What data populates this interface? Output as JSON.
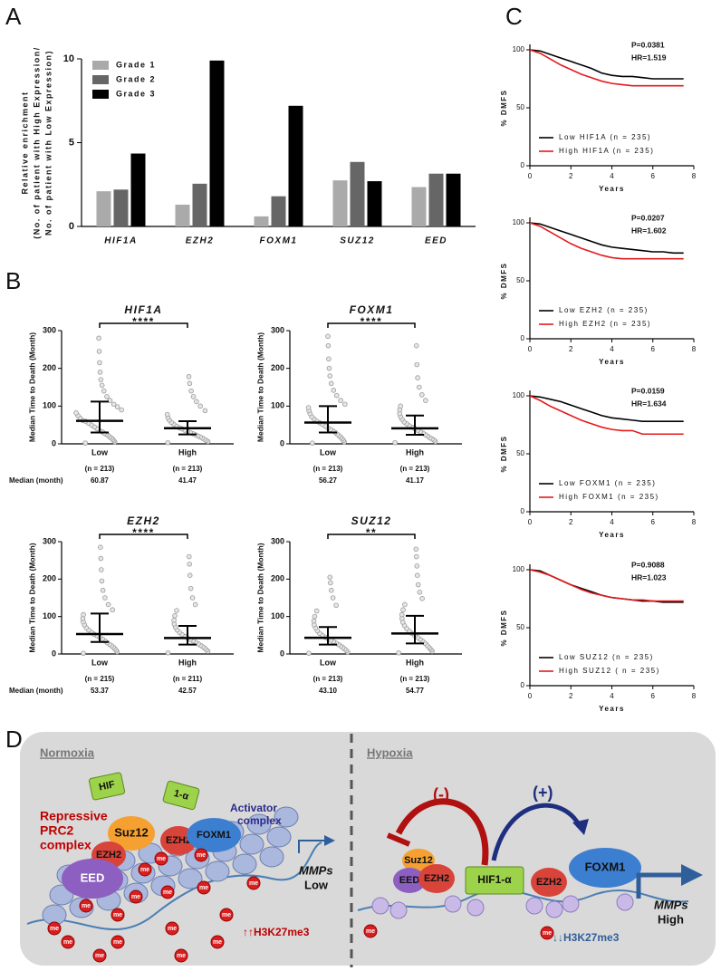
{
  "panel_labels": [
    "A",
    "B",
    "C",
    "D"
  ],
  "chart_data": [
    {
      "type": "bar",
      "ylabel": [
        "Relative enrichment",
        "(No. of patient with High Expression/",
        "No. of patient with Low Expression)"
      ],
      "categories": [
        "HIF1A",
        "EZH2",
        "FOXM1",
        "SUZ12",
        "EED"
      ],
      "series": [
        {
          "name": "Grade 1",
          "color": "#aaaaaa",
          "values": [
            2.1,
            1.3,
            0.6,
            2.75,
            2.35
          ]
        },
        {
          "name": "Grade 2",
          "color": "#666666",
          "values": [
            2.2,
            2.55,
            1.8,
            3.85,
            3.15
          ]
        },
        {
          "name": "Grade 3",
          "color": "#000000",
          "values": [
            4.35,
            9.9,
            7.2,
            2.7,
            3.15
          ]
        }
      ],
      "ylim": [
        0,
        10
      ],
      "yticks": [
        0,
        5,
        10
      ]
    },
    {
      "type": "dot",
      "title": "HIF1A",
      "ylabel": "Median Time to Death (Month)",
      "significance": "****",
      "categories": [
        "Low",
        "High"
      ],
      "n_labels": [
        "(n = 213)",
        "(n = 213)"
      ],
      "median_label": "Median (month)",
      "values": [
        60.87,
        41.47
      ],
      "value_labels": [
        "60.87",
        "41.47"
      ],
      "q1": [
        30,
        25
      ],
      "q3": [
        112,
        60
      ],
      "points": [
        [
          2,
          5,
          8,
          12,
          15,
          18,
          22,
          25,
          28,
          32,
          35,
          40,
          45,
          50,
          55,
          60,
          62,
          68,
          75,
          82,
          90,
          98,
          105,
          115,
          125,
          140,
          155,
          170,
          190,
          215,
          245,
          280
        ],
        [
          3,
          6,
          9,
          12,
          15,
          18,
          21,
          24,
          27,
          30,
          33,
          36,
          40,
          43,
          47,
          52,
          57,
          63,
          70,
          78,
          88,
          100,
          112,
          125,
          140,
          160,
          178
        ]
      ],
      "color": "#999999",
      "ylim": [
        0,
        300
      ],
      "yticks": [
        0,
        100,
        200,
        300
      ]
    },
    {
      "type": "dot",
      "title": "FOXM1",
      "ylabel": "Median Time to Death (Month)",
      "significance": "****",
      "categories": [
        "Low",
        "High"
      ],
      "n_labels": [
        "(n = 213)",
        "(n = 213)"
      ],
      "values": [
        56.27,
        41.17
      ],
      "value_labels": [
        "56.27",
        "41.17"
      ],
      "q1": [
        30,
        24
      ],
      "q3": [
        100,
        75
      ],
      "points": [
        [
          2,
          5,
          9,
          13,
          17,
          21,
          25,
          30,
          34,
          38,
          42,
          47,
          52,
          56,
          60,
          66,
          72,
          80,
          88,
          96,
          105,
          115,
          128,
          142,
          160,
          180,
          200,
          225,
          260,
          285
        ],
        [
          3,
          6,
          10,
          13,
          16,
          20,
          24,
          28,
          32,
          36,
          40,
          44,
          48,
          53,
          58,
          65,
          72,
          80,
          90,
          100,
          115,
          130,
          150,
          175,
          210,
          260
        ]
      ],
      "color": "#999999",
      "ylim": [
        0,
        300
      ],
      "yticks": [
        0,
        100,
        200,
        300
      ]
    },
    {
      "type": "dot",
      "title": "EZH2",
      "ylabel": "Median Time to Death (Month)",
      "significance": "****",
      "categories": [
        "Low",
        "High"
      ],
      "n_labels": [
        "(n = 215)",
        "(n = 211)"
      ],
      "median_label": "Median (month)",
      "values": [
        53.37,
        42.57
      ],
      "value_labels": [
        "53.37",
        "42.57"
      ],
      "q1": [
        32,
        25
      ],
      "q3": [
        108,
        75
      ],
      "points": [
        [
          2,
          6,
          10,
          14,
          18,
          22,
          26,
          30,
          35,
          40,
          44,
          49,
          53,
          58,
          64,
          70,
          78,
          86,
          95,
          105,
          118,
          132,
          150,
          170,
          195,
          225,
          255,
          285
        ],
        [
          3,
          7,
          11,
          15,
          19,
          23,
          27,
          31,
          35,
          39,
          43,
          47,
          52,
          58,
          64,
          72,
          80,
          90,
          102,
          116,
          132,
          150,
          175,
          210,
          240,
          260
        ]
      ],
      "color": "#999999",
      "ylim": [
        0,
        300
      ],
      "yticks": [
        0,
        100,
        200,
        300
      ]
    },
    {
      "type": "dot",
      "title": "SUZ12",
      "ylabel": "Median Time to Death (Month)",
      "significance": "**",
      "categories": [
        "Low",
        "High"
      ],
      "n_labels": [
        "(n = 213)",
        "(n = 213)"
      ],
      "values": [
        43.1,
        54.77
      ],
      "value_labels": [
        "43.10",
        "54.77"
      ],
      "q1": [
        25,
        28
      ],
      "q3": [
        72,
        102
      ],
      "points": [
        [
          2,
          5,
          9,
          13,
          17,
          21,
          25,
          29,
          33,
          37,
          41,
          45,
          50,
          55,
          62,
          70,
          78,
          88,
          100,
          115,
          130,
          150,
          170,
          190,
          205
        ],
        [
          3,
          7,
          11,
          15,
          19,
          24,
          29,
          34,
          39,
          44,
          49,
          55,
          61,
          68,
          76,
          85,
          95,
          105,
          118,
          132,
          148,
          165,
          185,
          210,
          235,
          260,
          280
        ]
      ],
      "color": "#999999",
      "ylim": [
        0,
        300
      ],
      "yticks": [
        0,
        100,
        200,
        300
      ]
    },
    {
      "type": "line",
      "annotations": [
        "P=0.0381",
        "HR=1.519"
      ],
      "xlabel": "Years",
      "ylabel": "% DMFS",
      "x": [
        0,
        0.5,
        1,
        1.5,
        2,
        2.5,
        3,
        3.5,
        4,
        4.5,
        5,
        5.5,
        6,
        6.5,
        7,
        7.5
      ],
      "series": [
        {
          "name": "Low HIF1A (n = 235)",
          "color": "#000000",
          "values": [
            100,
            99,
            96,
            93,
            90,
            87,
            84,
            80,
            78,
            77,
            77,
            76,
            75,
            75,
            75,
            75
          ]
        },
        {
          "name": "High HIF1A (n = 235)",
          "color": "#e41a1c",
          "values": [
            100,
            97,
            92,
            87,
            83,
            79,
            76,
            73,
            71,
            70,
            69,
            69,
            69,
            69,
            69,
            69
          ]
        }
      ],
      "xlim": [
        0,
        8
      ],
      "xticks": [
        0,
        2,
        4,
        6,
        8
      ],
      "ylim": [
        0,
        100
      ],
      "yticks": [
        0,
        50,
        100
      ]
    },
    {
      "type": "line",
      "annotations": [
        "P=0.0207",
        "HR=1.602"
      ],
      "xlabel": "Years",
      "ylabel": "% DMFS",
      "x": [
        0,
        0.5,
        1,
        1.5,
        2,
        2.5,
        3,
        3.5,
        4,
        4.5,
        5,
        5.5,
        6,
        6.5,
        7,
        7.5
      ],
      "series": [
        {
          "name": "Low EZH2 (n = 235)",
          "color": "#000000",
          "values": [
            100,
            99,
            96,
            93,
            90,
            87,
            84,
            81,
            79,
            78,
            77,
            76,
            75,
            75,
            74,
            74
          ]
        },
        {
          "name": "High EZH2 (n = 235)",
          "color": "#e41a1c",
          "values": [
            100,
            97,
            92,
            87,
            82,
            78,
            75,
            72,
            70,
            69,
            69,
            69,
            69,
            69,
            69,
            69
          ]
        }
      ],
      "xlim": [
        0,
        8
      ],
      "xticks": [
        0,
        2,
        4,
        6,
        8
      ],
      "ylim": [
        0,
        100
      ],
      "yticks": [
        0,
        50,
        100
      ]
    },
    {
      "type": "line",
      "annotations": [
        "P=0.0159",
        "HR=1.634"
      ],
      "xlabel": "Years",
      "ylabel": "% DMFS",
      "x": [
        0,
        0.5,
        1,
        1.5,
        2,
        2.5,
        3,
        3.5,
        4,
        4.5,
        5,
        5.5,
        6,
        6.5,
        7,
        7.5
      ],
      "series": [
        {
          "name": "Low FOXM1 (n = 235)",
          "color": "#000000",
          "values": [
            100,
            99,
            97,
            95,
            92,
            89,
            86,
            83,
            81,
            80,
            79,
            78,
            78,
            78,
            78,
            78
          ]
        },
        {
          "name": "High FOXM1 (n = 235)",
          "color": "#e41a1c",
          "values": [
            100,
            96,
            91,
            87,
            83,
            79,
            76,
            73,
            71,
            70,
            70,
            67,
            67,
            67,
            67,
            67
          ]
        }
      ],
      "xlim": [
        0,
        8
      ],
      "xticks": [
        0,
        2,
        4,
        6,
        8
      ],
      "ylim": [
        0,
        100
      ],
      "yticks": [
        0,
        50,
        100
      ]
    },
    {
      "type": "line",
      "annotations": [
        "P=0.9088",
        "HR=1.023"
      ],
      "xlabel": "Years",
      "ylabel": "% DMFS",
      "x": [
        0,
        0.5,
        1,
        1.5,
        2,
        2.5,
        3,
        3.5,
        4,
        4.5,
        5,
        5.5,
        6,
        6.5,
        7,
        7.5
      ],
      "series": [
        {
          "name": "Low SUZ12 (n = 235)",
          "color": "#000000",
          "values": [
            100,
            99,
            95,
            91,
            87,
            84,
            81,
            78,
            76,
            75,
            74,
            73,
            73,
            72,
            72,
            72
          ]
        },
        {
          "name": "High SUZ12 ( n = 235)",
          "color": "#e41a1c",
          "values": [
            100,
            98,
            95,
            91,
            87,
            83,
            80,
            78,
            76,
            75,
            74,
            74,
            73,
            73,
            73,
            73
          ]
        }
      ],
      "xlim": [
        0,
        8
      ],
      "xticks": [
        0,
        2,
        4,
        6,
        8
      ],
      "ylim": [
        0,
        100
      ],
      "yticks": [
        0,
        50,
        100
      ]
    }
  ],
  "diagram": {
    "left_title": "Normoxia",
    "right_title": "Hypoxia",
    "hif": "HIF",
    "alpha": "1-α",
    "repressive": [
      "Repressive",
      "PRC2",
      "complex"
    ],
    "activator": [
      "Activator",
      "complex"
    ],
    "left_proteins": {
      "suz12": "Suz12",
      "ezh2": "EZH2",
      "eed": "EED",
      "ezh2_b": "EZH2",
      "foxm1": "FOXM1"
    },
    "left_gene": "MMPs",
    "left_level": "Low",
    "left_mark": "↑↑H3K27me3",
    "inhibit": "(-)",
    "activate": "(+)",
    "right_proteins": {
      "suz12": "Suz12",
      "eed": "EED",
      "ezh2": "EZH2",
      "hif": "HIF1-α",
      "ezh2_b": "EZH2",
      "foxm1": "FOXM1"
    },
    "right_gene": "MMPs",
    "right_level": "High",
    "right_mark": "↓↓H3K27me3",
    "me": "me"
  }
}
